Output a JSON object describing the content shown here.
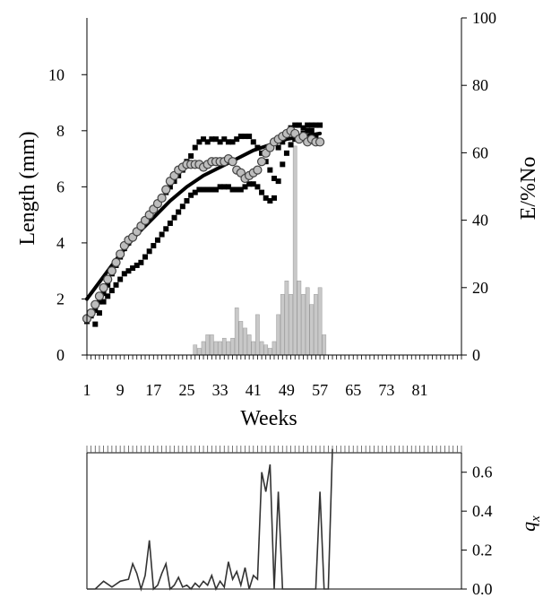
{
  "chart_data": [
    {
      "type": "line",
      "xlabel": "Weeks",
      "ylabel": "Length (mm)",
      "y2label": "E/%No",
      "xlim": [
        1,
        91
      ],
      "ylim": [
        0,
        11
      ],
      "y2lim": [
        0,
        100
      ],
      "x_ticks": [
        "1",
        "9",
        "17",
        "25",
        "33",
        "41",
        "49",
        "57",
        "65",
        "73",
        "81"
      ],
      "y_ticks": [
        "0",
        "2",
        "4",
        "6",
        "8",
        "10"
      ],
      "y2_ticks": [
        "0",
        "20",
        "40",
        "60",
        "80",
        "100"
      ],
      "grid": false,
      "series": [
        {
          "style": "squares",
          "color": "#000000",
          "points": [
            [
              1,
              1.2
            ],
            [
              2,
              1.4
            ],
            [
              3,
              1.6
            ],
            [
              4,
              1.9
            ],
            [
              5,
              2.2
            ],
            [
              6,
              2.5
            ],
            [
              7,
              2.9
            ],
            [
              8,
              3.2
            ],
            [
              9,
              3.5
            ],
            [
              10,
              3.8
            ],
            [
              11,
              4.0
            ],
            [
              12,
              4.2
            ],
            [
              13,
              4.4
            ],
            [
              14,
              4.6
            ],
            [
              15,
              4.8
            ],
            [
              16,
              5.0
            ],
            [
              17,
              5.2
            ],
            [
              18,
              5.4
            ],
            [
              19,
              5.6
            ],
            [
              20,
              5.8
            ],
            [
              21,
              6.0
            ],
            [
              22,
              6.2
            ],
            [
              23,
              6.4
            ],
            [
              24,
              6.6
            ],
            [
              25,
              6.9
            ],
            [
              26,
              7.1
            ],
            [
              27,
              7.4
            ],
            [
              28,
              7.6
            ],
            [
              29,
              7.7
            ],
            [
              30,
              7.6
            ],
            [
              31,
              7.7
            ],
            [
              32,
              7.7
            ],
            [
              33,
              7.6
            ],
            [
              34,
              7.7
            ],
            [
              35,
              7.6
            ],
            [
              36,
              7.6
            ],
            [
              37,
              7.7
            ],
            [
              38,
              7.8
            ],
            [
              39,
              7.8
            ],
            [
              40,
              7.8
            ],
            [
              41,
              7.6
            ],
            [
              42,
              7.4
            ],
            [
              43,
              7.2
            ],
            [
              44,
              6.9
            ],
            [
              45,
              6.6
            ],
            [
              46,
              6.3
            ],
            [
              47,
              7.4
            ],
            [
              48,
              7.6
            ],
            [
              49,
              7.9
            ],
            [
              50,
              8.1
            ],
            [
              51,
              8.2
            ],
            [
              52,
              8.2
            ],
            [
              53,
              8.1
            ],
            [
              54,
              8.2
            ],
            [
              55,
              8.2
            ],
            [
              56,
              8.2
            ],
            [
              57,
              8.2
            ],
            [
              1,
              1.3
            ],
            [
              2,
              1.5
            ],
            [
              3,
              1.1
            ],
            [
              4,
              1.5
            ],
            [
              5,
              1.9
            ],
            [
              6,
              2.1
            ],
            [
              7,
              2.3
            ],
            [
              8,
              2.5
            ],
            [
              9,
              2.7
            ],
            [
              10,
              2.9
            ],
            [
              11,
              3.0
            ],
            [
              12,
              3.1
            ],
            [
              13,
              3.2
            ],
            [
              14,
              3.3
            ],
            [
              15,
              3.5
            ],
            [
              16,
              3.7
            ],
            [
              17,
              3.9
            ],
            [
              18,
              4.1
            ],
            [
              19,
              4.3
            ],
            [
              20,
              4.5
            ],
            [
              21,
              4.7
            ],
            [
              22,
              4.9
            ],
            [
              23,
              5.1
            ],
            [
              24,
              5.3
            ],
            [
              25,
              5.5
            ],
            [
              26,
              5.7
            ],
            [
              27,
              5.8
            ],
            [
              28,
              5.9
            ],
            [
              29,
              5.9
            ],
            [
              30,
              5.9
            ],
            [
              31,
              5.9
            ],
            [
              32,
              5.9
            ],
            [
              33,
              6.0
            ],
            [
              34,
              6.0
            ],
            [
              35,
              6.0
            ],
            [
              36,
              5.9
            ],
            [
              37,
              5.9
            ],
            [
              38,
              5.9
            ],
            [
              39,
              6.0
            ],
            [
              40,
              6.1
            ],
            [
              41,
              6.1
            ],
            [
              42,
              6.0
            ],
            [
              43,
              5.8
            ],
            [
              44,
              5.6
            ],
            [
              45,
              5.5
            ],
            [
              46,
              5.6
            ],
            [
              47,
              6.2
            ],
            [
              48,
              6.8
            ],
            [
              49,
              7.2
            ],
            [
              50,
              7.5
            ],
            [
              51,
              7.7
            ],
            [
              52,
              7.8
            ],
            [
              53,
              7.9
            ],
            [
              54,
              8.0
            ],
            [
              55,
              8.0
            ],
            [
              56,
              7.8
            ],
            [
              57,
              7.6
            ]
          ]
        },
        {
          "style": "circles",
          "color": "#bdbdbd",
          "points": [
            [
              1,
              1.3
            ],
            [
              2,
              1.5
            ],
            [
              3,
              1.8
            ],
            [
              4,
              2.1
            ],
            [
              5,
              2.4
            ],
            [
              6,
              2.7
            ],
            [
              7,
              3.0
            ],
            [
              8,
              3.3
            ],
            [
              9,
              3.6
            ],
            [
              10,
              3.9
            ],
            [
              11,
              4.1
            ],
            [
              12,
              4.2
            ],
            [
              13,
              4.4
            ],
            [
              14,
              4.6
            ],
            [
              15,
              4.8
            ],
            [
              16,
              5.0
            ],
            [
              17,
              5.2
            ],
            [
              18,
              5.4
            ],
            [
              19,
              5.6
            ],
            [
              20,
              5.9
            ],
            [
              21,
              6.2
            ],
            [
              22,
              6.4
            ],
            [
              23,
              6.6
            ],
            [
              24,
              6.7
            ],
            [
              25,
              6.8
            ],
            [
              26,
              6.8
            ],
            [
              27,
              6.8
            ],
            [
              28,
              6.8
            ],
            [
              29,
              6.7
            ],
            [
              30,
              6.8
            ],
            [
              31,
              6.9
            ],
            [
              32,
              6.9
            ],
            [
              33,
              6.9
            ],
            [
              34,
              6.9
            ],
            [
              35,
              7.0
            ],
            [
              36,
              6.9
            ],
            [
              37,
              6.6
            ],
            [
              38,
              6.5
            ],
            [
              39,
              6.3
            ],
            [
              40,
              6.4
            ],
            [
              41,
              6.5
            ],
            [
              42,
              6.6
            ],
            [
              43,
              6.9
            ],
            [
              44,
              7.2
            ],
            [
              45,
              7.4
            ],
            [
              46,
              7.6
            ],
            [
              47,
              7.7
            ],
            [
              48,
              7.8
            ],
            [
              49,
              7.9
            ],
            [
              50,
              8.0
            ],
            [
              51,
              7.9
            ],
            [
              52,
              7.7
            ],
            [
              53,
              7.8
            ],
            [
              54,
              7.6
            ],
            [
              55,
              7.7
            ],
            [
              56,
              7.6
            ],
            [
              57,
              7.6
            ]
          ]
        },
        {
          "style": "thick-line",
          "color": "#000000",
          "points": [
            [
              1,
              2.0
            ],
            [
              5,
              2.8
            ],
            [
              9,
              3.6
            ],
            [
              13,
              4.3
            ],
            [
              17,
              4.9
            ],
            [
              21,
              5.5
            ],
            [
              25,
              6.0
            ],
            [
              29,
              6.4
            ],
            [
              33,
              6.7
            ],
            [
              37,
              7.0
            ],
            [
              41,
              7.3
            ],
            [
              45,
              7.5
            ],
            [
              49,
              7.7
            ],
            [
              53,
              7.8
            ],
            [
              57,
              7.9
            ]
          ]
        }
      ],
      "bars": {
        "axis": "right",
        "color": "#c8c8c8",
        "x": [
          27,
          28,
          29,
          30,
          31,
          32,
          33,
          34,
          35,
          36,
          37,
          38,
          39,
          40,
          41,
          42,
          43,
          44,
          45,
          46,
          47,
          48,
          49,
          50,
          51,
          52,
          53,
          54,
          55,
          56,
          57,
          58
        ],
        "values": [
          3,
          2,
          4,
          6,
          6,
          4,
          4,
          5,
          4,
          5,
          14,
          10,
          8,
          6,
          4,
          12,
          4,
          3,
          2,
          4,
          12,
          18,
          22,
          18,
          62,
          22,
          18,
          20,
          15,
          18,
          20,
          6
        ]
      }
    },
    {
      "type": "line",
      "ylabel": "q",
      "ylabel_sub": "x",
      "ylim": [
        0,
        0.7
      ],
      "y_ticks": [
        "0.0",
        "0.2",
        "0.4",
        "0.6"
      ],
      "color": "#333333",
      "points": [
        [
          1,
          0
        ],
        [
          3,
          0
        ],
        [
          5,
          0.04
        ],
        [
          7,
          0.01
        ],
        [
          9,
          0.04
        ],
        [
          11,
          0.05
        ],
        [
          12,
          0.13
        ],
        [
          13,
          0.08
        ],
        [
          14,
          0
        ],
        [
          15,
          0.07
        ],
        [
          16,
          0.25
        ],
        [
          17,
          0
        ],
        [
          18,
          0.02
        ],
        [
          19,
          0.08
        ],
        [
          20,
          0.13
        ],
        [
          21,
          0
        ],
        [
          22,
          0.02
        ],
        [
          23,
          0.06
        ],
        [
          24,
          0.01
        ],
        [
          25,
          0.02
        ],
        [
          26,
          0
        ],
        [
          27,
          0.03
        ],
        [
          28,
          0.01
        ],
        [
          29,
          0.04
        ],
        [
          30,
          0.02
        ],
        [
          31,
          0.07
        ],
        [
          32,
          0
        ],
        [
          33,
          0.04
        ],
        [
          34,
          0.01
        ],
        [
          35,
          0.14
        ],
        [
          36,
          0.05
        ],
        [
          37,
          0.09
        ],
        [
          38,
          0.02
        ],
        [
          39,
          0.11
        ],
        [
          40,
          0
        ],
        [
          41,
          0.07
        ],
        [
          42,
          0.05
        ],
        [
          43,
          0.6
        ],
        [
          44,
          0.5
        ],
        [
          45,
          0.64
        ],
        [
          46,
          0
        ],
        [
          47,
          0.5
        ],
        [
          48,
          0
        ],
        [
          56,
          0
        ],
        [
          57,
          0.5
        ],
        [
          58,
          0
        ],
        [
          59,
          0
        ],
        [
          60,
          0.72
        ]
      ]
    }
  ]
}
